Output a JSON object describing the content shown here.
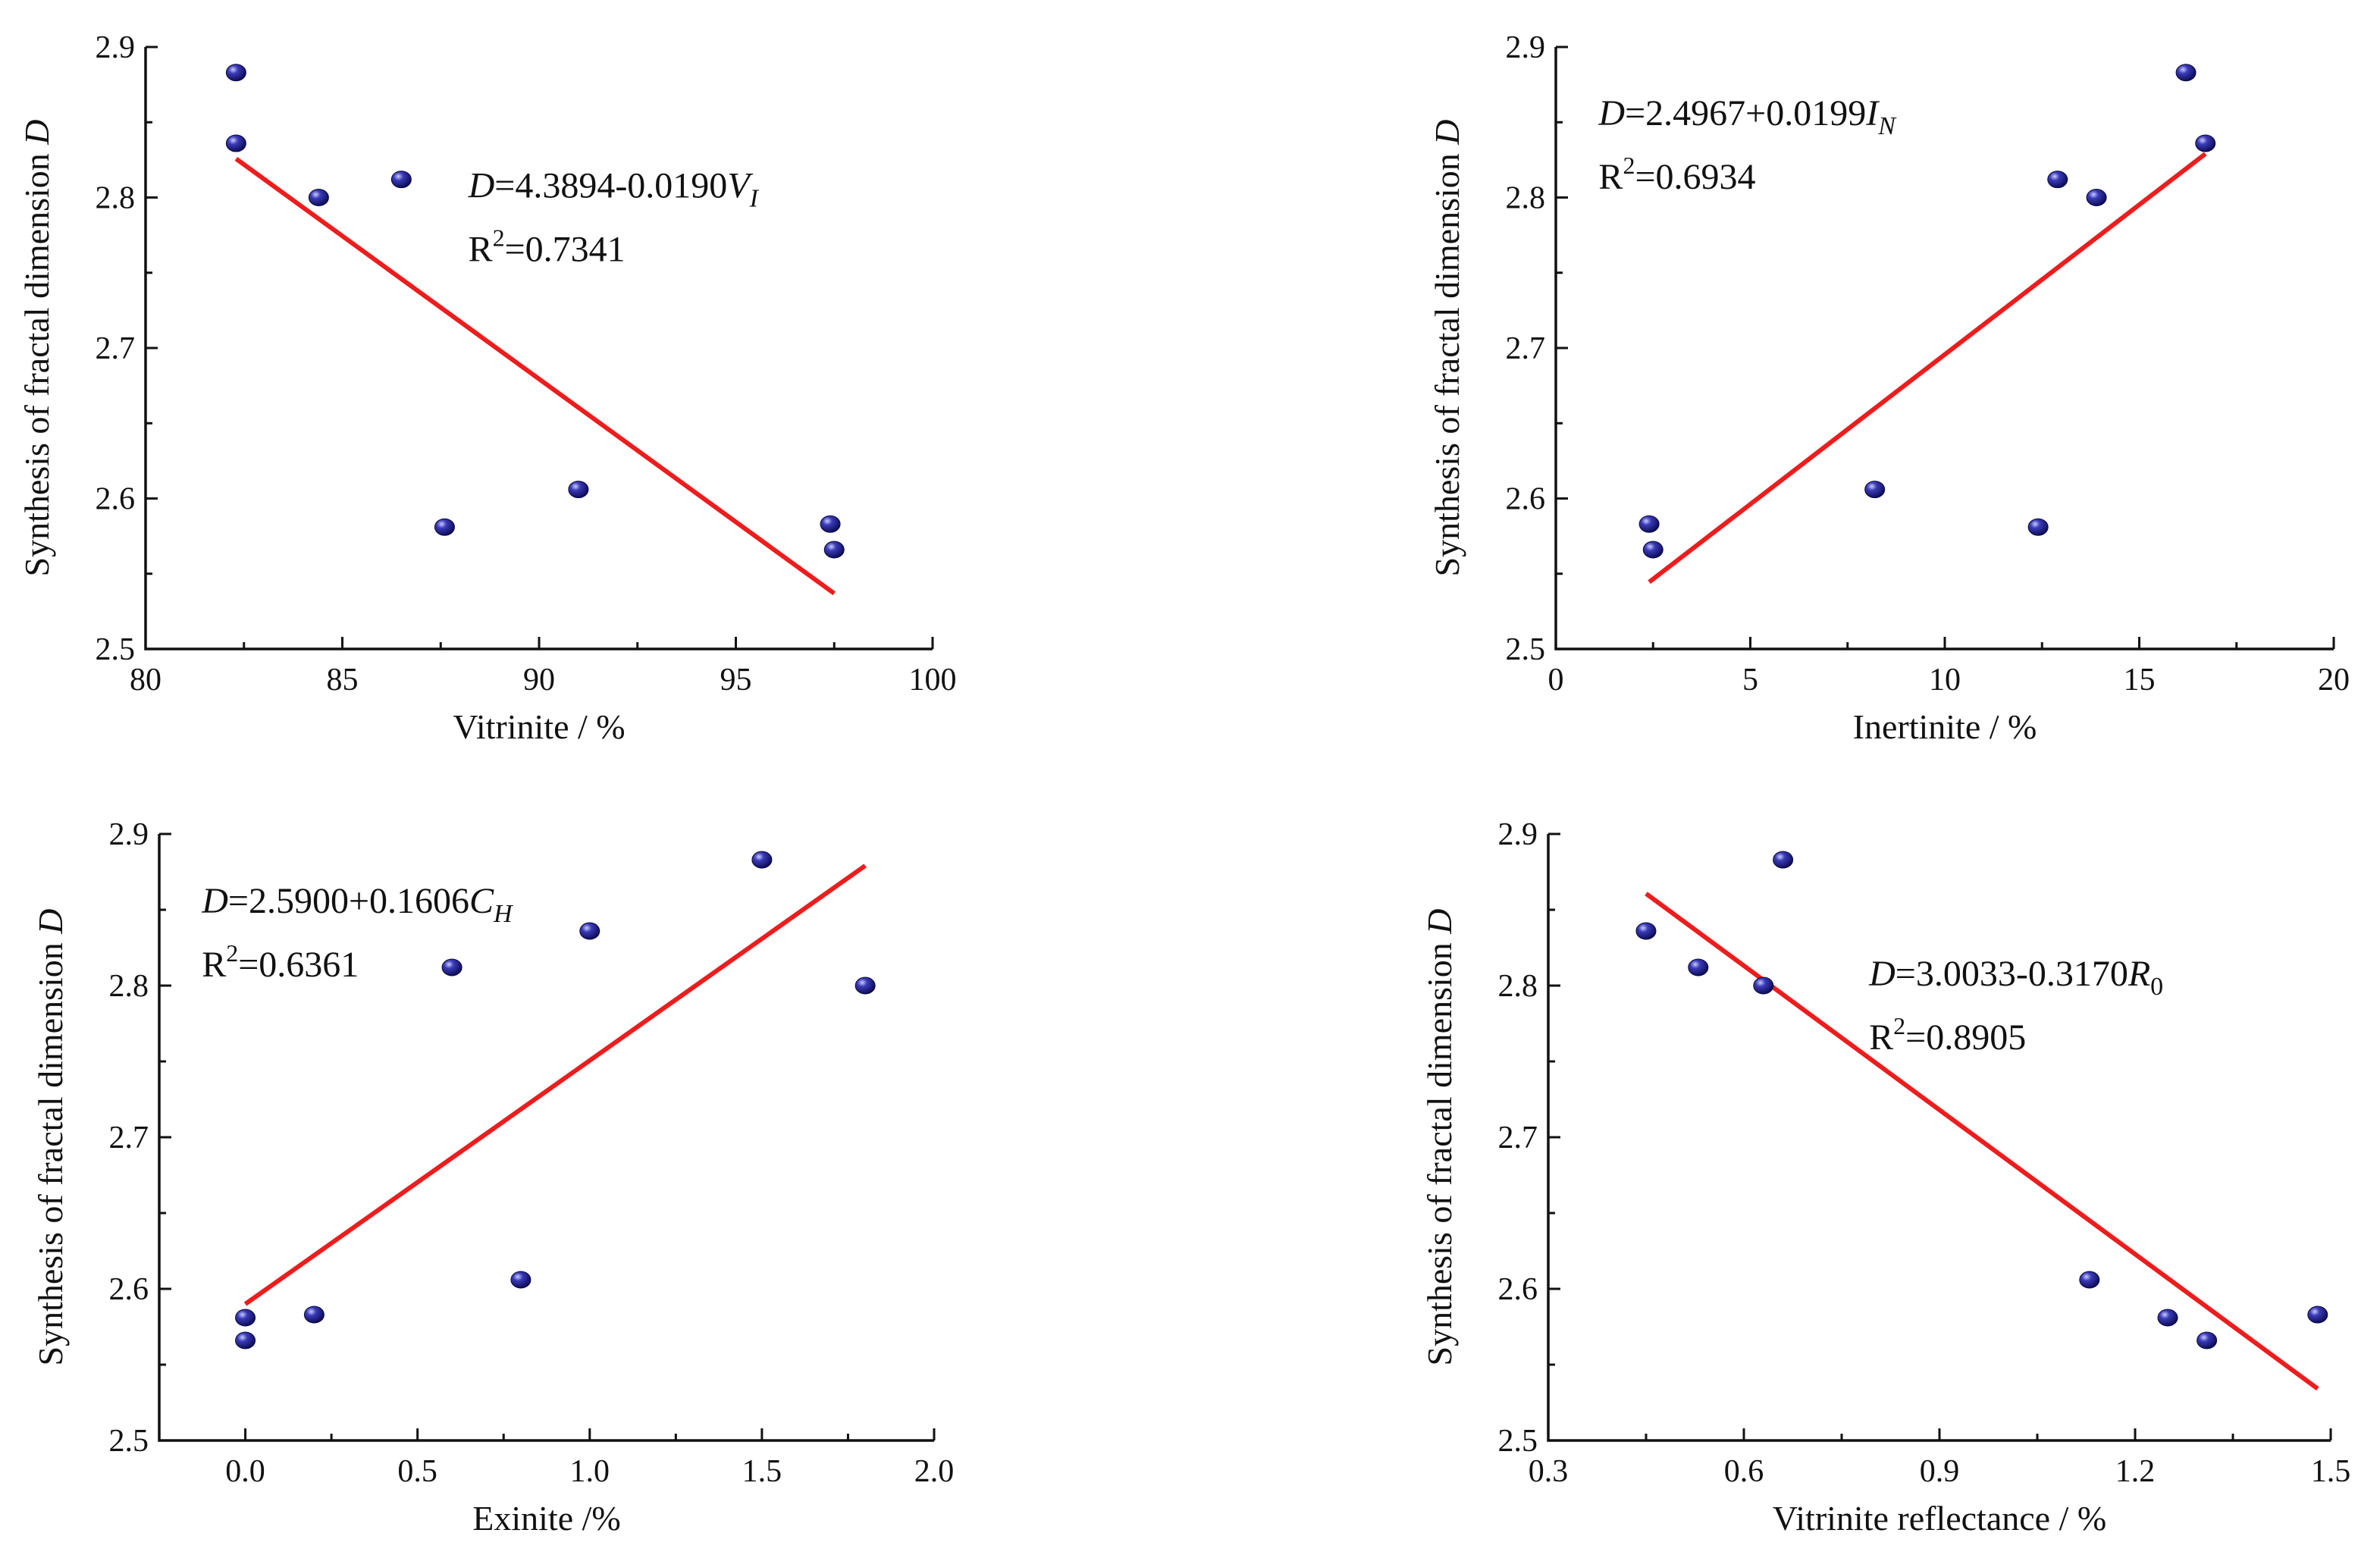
{
  "chart_data": [
    {
      "type": "scatter",
      "panel": "top-left",
      "xlabel": "Vitrinite / %",
      "ylabel": "Synthesis of fractal dimension D",
      "xlim": [
        80,
        100
      ],
      "ylim": [
        2.5,
        2.9
      ],
      "xticks": [
        80,
        85,
        90,
        95,
        100
      ],
      "xtick_labels": [
        "80",
        "85",
        "90",
        "95",
        "100"
      ],
      "yticks": [
        2.5,
        2.6,
        2.7,
        2.8,
        2.9
      ],
      "ytick_labels": [
        "2.5",
        "2.6",
        "2.7",
        "2.8",
        "2.9"
      ],
      "points": [
        [
          82.3,
          2.883
        ],
        [
          82.3,
          2.836
        ],
        [
          84.4,
          2.8
        ],
        [
          86.5,
          2.812
        ],
        [
          87.6,
          2.581
        ],
        [
          91.0,
          2.606
        ],
        [
          97.4,
          2.583
        ],
        [
          97.5,
          2.566
        ]
      ],
      "fit": {
        "intercept": 4.3894,
        "slope": -0.019,
        "x_range": [
          82.3,
          97.5
        ]
      },
      "equation": {
        "lhs": "D",
        "rhs": "=4.3894-0.0190",
        "var": "V",
        "sub": "I",
        "r2_label": "R",
        "r2_value": "=0.7341",
        "position": "upper-right"
      },
      "grid": false,
      "point_color": "#1c1c8c",
      "line_color": "#ee1c1c"
    },
    {
      "type": "scatter",
      "panel": "top-right",
      "xlabel": "Inertinite / %",
      "ylabel": "Synthesis of fractal dimension D",
      "xlim": [
        0,
        20
      ],
      "ylim": [
        2.5,
        2.9
      ],
      "xticks": [
        0,
        5,
        10,
        15,
        20
      ],
      "xtick_labels": [
        "0",
        "5",
        "10",
        "15",
        "20"
      ],
      "yticks": [
        2.5,
        2.6,
        2.7,
        2.8,
        2.9
      ],
      "ytick_labels": [
        "2.5",
        "2.6",
        "2.7",
        "2.8",
        "2.9"
      ],
      "points": [
        [
          2.4,
          2.583
        ],
        [
          2.5,
          2.566
        ],
        [
          8.2,
          2.606
        ],
        [
          12.4,
          2.581
        ],
        [
          12.9,
          2.812
        ],
        [
          13.9,
          2.8
        ],
        [
          16.2,
          2.883
        ],
        [
          16.7,
          2.836
        ]
      ],
      "fit": {
        "intercept": 2.4967,
        "slope": 0.0199,
        "x_range": [
          2.4,
          16.7
        ]
      },
      "equation": {
        "lhs": "D",
        "rhs": "=2.4967+0.0199",
        "var": "I",
        "sub": "N",
        "r2_label": "R",
        "r2_value": "=0.6934",
        "position": "upper-left"
      },
      "grid": false,
      "point_color": "#1c1c8c",
      "line_color": "#ee1c1c"
    },
    {
      "type": "scatter",
      "panel": "bottom-left",
      "xlabel": "Exinite /%",
      "ylabel": "Synthesis of fractal dimension D",
      "xlim": [
        -0.25,
        2.0
      ],
      "ylim": [
        2.5,
        2.9
      ],
      "xticks": [
        0.0,
        0.5,
        1.0,
        1.5,
        2.0
      ],
      "xtick_labels": [
        "0.0",
        "0.5",
        "1.0",
        "1.5",
        "2.0"
      ],
      "yticks": [
        2.5,
        2.6,
        2.7,
        2.8,
        2.9
      ],
      "ytick_labels": [
        "2.5",
        "2.6",
        "2.7",
        "2.8",
        "2.9"
      ],
      "points": [
        [
          0.0,
          2.581
        ],
        [
          0.0,
          2.566
        ],
        [
          0.2,
          2.583
        ],
        [
          0.6,
          2.812
        ],
        [
          0.8,
          2.606
        ],
        [
          1.0,
          2.836
        ],
        [
          1.5,
          2.883
        ],
        [
          1.8,
          2.8
        ]
      ],
      "fit": {
        "intercept": 2.59,
        "slope": 0.1606,
        "x_range": [
          0.0,
          1.8
        ]
      },
      "equation": {
        "lhs": "D",
        "rhs": "=2.5900+0.1606",
        "var": "C",
        "sub": "H",
        "r2_label": "R",
        "r2_value": "=0.6361",
        "position": "upper-left"
      },
      "grid": false,
      "point_color": "#1c1c8c",
      "line_color": "#ee1c1c"
    },
    {
      "type": "scatter",
      "panel": "bottom-right",
      "xlabel": "Vitrinite reflectance / %",
      "ylabel": "Synthesis of fractal dimension D",
      "xlim": [
        0.3,
        1.5
      ],
      "ylim": [
        2.5,
        2.9
      ],
      "xticks": [
        0.3,
        0.6,
        0.9,
        1.2,
        1.5
      ],
      "xtick_labels": [
        "0.3",
        "0.6",
        "0.9",
        "1.2",
        "1.5"
      ],
      "yticks": [
        2.5,
        2.6,
        2.7,
        2.8,
        2.9
      ],
      "ytick_labels": [
        "2.5",
        "2.6",
        "2.7",
        "2.8",
        "2.9"
      ],
      "points": [
        [
          0.45,
          2.836
        ],
        [
          0.53,
          2.812
        ],
        [
          0.63,
          2.8
        ],
        [
          0.66,
          2.883
        ],
        [
          1.13,
          2.606
        ],
        [
          1.25,
          2.581
        ],
        [
          1.31,
          2.566
        ],
        [
          1.48,
          2.583
        ]
      ],
      "fit": {
        "intercept": 3.0033,
        "slope": -0.317,
        "x_range": [
          0.45,
          1.48
        ]
      },
      "equation": {
        "lhs": "D",
        "rhs": "=3.0033-0.3170",
        "var": "R",
        "sub": "0",
        "r2_label": "R",
        "r2_value": "=0.8905",
        "position": "upper-right"
      },
      "grid": false,
      "point_color": "#1c1c8c",
      "line_color": "#ee1c1c"
    }
  ]
}
